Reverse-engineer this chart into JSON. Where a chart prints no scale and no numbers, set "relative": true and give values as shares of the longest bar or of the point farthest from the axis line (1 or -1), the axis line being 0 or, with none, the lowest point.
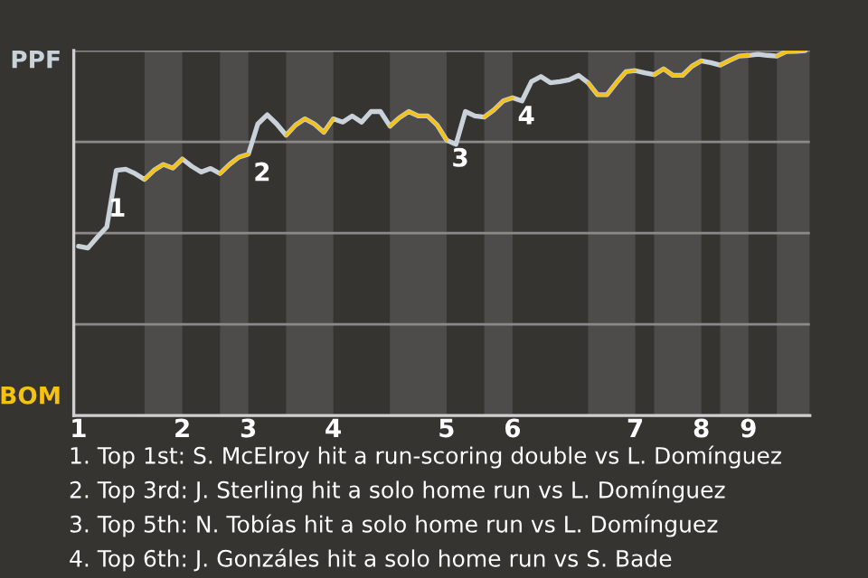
{
  "chart_data": {
    "type": "line",
    "relative": true,
    "categories": [
      "1",
      null,
      null,
      null,
      null,
      null,
      null,
      null,
      null,
      null,
      null,
      "2",
      null,
      null,
      null,
      null,
      null,
      null,
      "3",
      null,
      null,
      null,
      null,
      null,
      null,
      null,
      null,
      "4",
      null,
      null,
      null,
      null,
      null,
      null,
      null,
      null,
      null,
      null,
      null,
      "5",
      null,
      null,
      null,
      null,
      null,
      null,
      "6",
      null,
      null,
      null,
      null,
      null,
      null,
      null,
      null,
      null,
      null,
      null,
      null,
      "7",
      null,
      null,
      null,
      null,
      null,
      null,
      "8",
      null,
      null,
      null,
      null,
      "9",
      null,
      null,
      null,
      null,
      null,
      null
    ],
    "series": [
      {
        "color": "#c9d1d9",
        "values": [
          0.464,
          0.459,
          0.489,
          0.517,
          0.672,
          0.675,
          0.663,
          0.647,
          0.672,
          0.688,
          0.678,
          0.703,
          0.683,
          0.667,
          0.677,
          0.663,
          0.688,
          0.708,
          0.716,
          0.799,
          0.824,
          0.799,
          0.768,
          0.796,
          0.813,
          0.799,
          0.776,
          0.813,
          0.804,
          0.821,
          0.804,
          0.833,
          0.833,
          0.793,
          0.816,
          0.833,
          0.821,
          0.821,
          0.796,
          0.755,
          0.743,
          0.833,
          0.821,
          0.818,
          0.837,
          0.862,
          0.871,
          0.862,
          0.915,
          0.929,
          0.912,
          0.915,
          0.92,
          0.932,
          0.912,
          0.879,
          0.879,
          0.912,
          0.942,
          0.945,
          0.939,
          0.934,
          0.95,
          0.932,
          0.932,
          0.957,
          0.972,
          0.967,
          0.96,
          0.973,
          0.985,
          0.987,
          0.99,
          0.987,
          0.985,
          0.997,
          0.998,
          1
        ]
      },
      {
        "color": "#f5c211",
        "values": [
          null,
          null,
          null,
          null,
          null,
          null,
          null,
          0.647,
          0.672,
          0.688,
          0.678,
          0.703,
          null,
          null,
          null,
          0.663,
          0.688,
          0.708,
          0.716,
          null,
          null,
          null,
          0.768,
          0.796,
          0.813,
          0.799,
          0.776,
          0.813,
          null,
          null,
          null,
          null,
          null,
          0.793,
          0.816,
          0.833,
          0.821,
          0.821,
          0.796,
          0.755,
          null,
          null,
          null,
          0.818,
          0.837,
          0.862,
          0.871,
          null,
          null,
          null,
          null,
          null,
          null,
          null,
          0.912,
          0.879,
          0.879,
          0.912,
          0.942,
          0.945,
          null,
          0.934,
          0.95,
          0.932,
          0.932,
          0.957,
          0.972,
          null,
          0.96,
          0.973,
          0.985,
          0.987,
          null,
          null,
          0.985,
          0.997,
          0.998,
          1
        ]
      }
    ],
    "grid": "y",
    "legend": false,
    "marker": "none",
    "line_style": "solid",
    "annotations": [
      "1",
      {
        "text": "2",
        "x": "3",
        "y": 0.716
      },
      {
        "text": "3",
        "x": "5",
        "y": 0.755
      },
      {
        "text": "4",
        "x": "6",
        "y": 0.871
      },
      "PPF",
      "BOM",
      "1. Top 1st: S. McElroy hit a run-scoring double vs L. Domínguez",
      "2. Top 3rd: J. Sterling hit a solo home run vs L. Domínguez",
      "3. Top 5th: N. Tobías hit a solo home run vs L. Domínguez",
      "4. Top 6th: J. Gonzáles hit a solo home run vs S. Bade"
    ]
  }
}
